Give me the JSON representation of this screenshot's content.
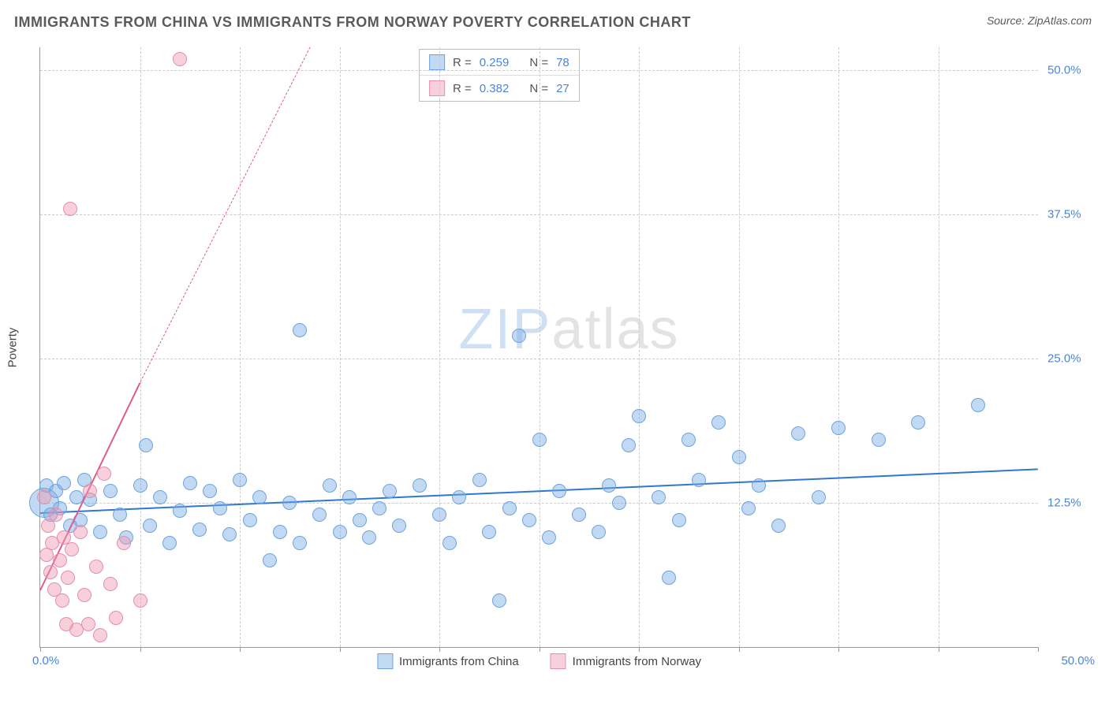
{
  "title": "IMMIGRANTS FROM CHINA VS IMMIGRANTS FROM NORWAY POVERTY CORRELATION CHART",
  "source": "Source: ZipAtlas.com",
  "ylabel": "Poverty",
  "watermark_zip": "ZIP",
  "watermark_atlas": "atlas",
  "chart": {
    "type": "scatter",
    "xlim": [
      0,
      50
    ],
    "ylim": [
      0,
      52
    ],
    "ytick_values": [
      12.5,
      25.0,
      37.5,
      50.0
    ],
    "ytick_labels": [
      "12.5%",
      "25.0%",
      "37.5%",
      "50.0%"
    ],
    "xtick_values": [
      0,
      5,
      10,
      15,
      20,
      25,
      30,
      35,
      40,
      45,
      50
    ],
    "x_axis_label_left": "0.0%",
    "x_axis_label_right": "50.0%",
    "grid_color": "#cccccc",
    "background": "#ffffff",
    "series": [
      {
        "name": "Immigrants from China",
        "color_fill": "rgba(120,170,230,0.45)",
        "color_stroke": "#6fa3dd",
        "trend_color": "#2f78d0",
        "trend_width": 2.5,
        "trend_dashed": false,
        "trend_start": {
          "x": 0,
          "y": 11.7
        },
        "trend_end": {
          "x": 50,
          "y": 15.5
        },
        "r_value": "0.259",
        "n_value": "78",
        "marker_radius": 8,
        "points": [
          {
            "x": 0.2,
            "y": 12.5,
            "r": 18
          },
          {
            "x": 0.3,
            "y": 14.0
          },
          {
            "x": 0.5,
            "y": 11.5
          },
          {
            "x": 0.8,
            "y": 13.5
          },
          {
            "x": 1.0,
            "y": 12.0
          },
          {
            "x": 1.2,
            "y": 14.2
          },
          {
            "x": 1.5,
            "y": 10.5
          },
          {
            "x": 1.8,
            "y": 13.0
          },
          {
            "x": 2.0,
            "y": 11.0
          },
          {
            "x": 2.2,
            "y": 14.5
          },
          {
            "x": 2.5,
            "y": 12.8
          },
          {
            "x": 3.0,
            "y": 10.0
          },
          {
            "x": 3.5,
            "y": 13.5
          },
          {
            "x": 4.0,
            "y": 11.5
          },
          {
            "x": 4.3,
            "y": 9.5
          },
          {
            "x": 5.0,
            "y": 14.0
          },
          {
            "x": 5.3,
            "y": 17.5
          },
          {
            "x": 5.5,
            "y": 10.5
          },
          {
            "x": 6.0,
            "y": 13.0
          },
          {
            "x": 6.5,
            "y": 9.0
          },
          {
            "x": 7.0,
            "y": 11.8
          },
          {
            "x": 7.5,
            "y": 14.2
          },
          {
            "x": 8.0,
            "y": 10.2
          },
          {
            "x": 8.5,
            "y": 13.5
          },
          {
            "x": 9.0,
            "y": 12.0
          },
          {
            "x": 9.5,
            "y": 9.8
          },
          {
            "x": 10.0,
            "y": 14.5
          },
          {
            "x": 10.5,
            "y": 11.0
          },
          {
            "x": 11.0,
            "y": 13.0
          },
          {
            "x": 11.5,
            "y": 7.5
          },
          {
            "x": 12.0,
            "y": 10.0
          },
          {
            "x": 12.5,
            "y": 12.5
          },
          {
            "x": 13.0,
            "y": 27.5
          },
          {
            "x": 13.0,
            "y": 9.0
          },
          {
            "x": 14.0,
            "y": 11.5
          },
          {
            "x": 14.5,
            "y": 14.0
          },
          {
            "x": 15.0,
            "y": 10.0
          },
          {
            "x": 15.5,
            "y": 13.0
          },
          {
            "x": 16.0,
            "y": 11.0
          },
          {
            "x": 16.5,
            "y": 9.5
          },
          {
            "x": 17.0,
            "y": 12.0
          },
          {
            "x": 17.5,
            "y": 13.5
          },
          {
            "x": 18.0,
            "y": 10.5
          },
          {
            "x": 19.0,
            "y": 14.0
          },
          {
            "x": 20.0,
            "y": 11.5
          },
          {
            "x": 20.5,
            "y": 9.0
          },
          {
            "x": 21.0,
            "y": 13.0
          },
          {
            "x": 22.0,
            "y": 14.5
          },
          {
            "x": 22.5,
            "y": 10.0
          },
          {
            "x": 23.0,
            "y": 4.0
          },
          {
            "x": 23.5,
            "y": 12.0
          },
          {
            "x": 24.0,
            "y": 27.0
          },
          {
            "x": 24.5,
            "y": 11.0
          },
          {
            "x": 25.0,
            "y": 18.0
          },
          {
            "x": 25.5,
            "y": 9.5
          },
          {
            "x": 26.0,
            "y": 13.5
          },
          {
            "x": 27.0,
            "y": 11.5
          },
          {
            "x": 28.0,
            "y": 10.0
          },
          {
            "x": 28.5,
            "y": 14.0
          },
          {
            "x": 29.0,
            "y": 12.5
          },
          {
            "x": 29.5,
            "y": 17.5
          },
          {
            "x": 30.0,
            "y": 20.0
          },
          {
            "x": 31.0,
            "y": 13.0
          },
          {
            "x": 31.5,
            "y": 6.0
          },
          {
            "x": 32.0,
            "y": 11.0
          },
          {
            "x": 32.5,
            "y": 18.0
          },
          {
            "x": 33.0,
            "y": 14.5
          },
          {
            "x": 34.0,
            "y": 19.5
          },
          {
            "x": 35.0,
            "y": 16.5
          },
          {
            "x": 35.5,
            "y": 12.0
          },
          {
            "x": 36.0,
            "y": 14.0
          },
          {
            "x": 37.0,
            "y": 10.5
          },
          {
            "x": 38.0,
            "y": 18.5
          },
          {
            "x": 39.0,
            "y": 13.0
          },
          {
            "x": 40.0,
            "y": 19.0
          },
          {
            "x": 42.0,
            "y": 18.0
          },
          {
            "x": 44.0,
            "y": 19.5
          },
          {
            "x": 47.0,
            "y": 21.0
          }
        ]
      },
      {
        "name": "Immigrants from Norway",
        "color_fill": "rgba(240,150,175,0.45)",
        "color_stroke": "#e48fac",
        "trend_color": "#e05b89",
        "trend_width": 2.5,
        "trend_dashed": false,
        "trend_start": {
          "x": 0,
          "y": 5.0
        },
        "trend_end": {
          "x": 5.0,
          "y": 23.0
        },
        "trend_ext_dashed": true,
        "trend_ext_start": {
          "x": 5.0,
          "y": 23.0
        },
        "trend_ext_end": {
          "x": 13.5,
          "y": 52.0
        },
        "r_value": "0.382",
        "n_value": "27",
        "marker_radius": 8,
        "points": [
          {
            "x": 0.2,
            "y": 13.0
          },
          {
            "x": 0.3,
            "y": 8.0
          },
          {
            "x": 0.4,
            "y": 10.5
          },
          {
            "x": 0.5,
            "y": 6.5
          },
          {
            "x": 0.6,
            "y": 9.0
          },
          {
            "x": 0.7,
            "y": 5.0
          },
          {
            "x": 0.8,
            "y": 11.5
          },
          {
            "x": 1.0,
            "y": 7.5
          },
          {
            "x": 1.1,
            "y": 4.0
          },
          {
            "x": 1.2,
            "y": 9.5
          },
          {
            "x": 1.3,
            "y": 2.0
          },
          {
            "x": 1.4,
            "y": 6.0
          },
          {
            "x": 1.5,
            "y": 38.0
          },
          {
            "x": 1.6,
            "y": 8.5
          },
          {
            "x": 1.8,
            "y": 1.5
          },
          {
            "x": 2.0,
            "y": 10.0
          },
          {
            "x": 2.2,
            "y": 4.5
          },
          {
            "x": 2.4,
            "y": 2.0
          },
          {
            "x": 2.5,
            "y": 13.5
          },
          {
            "x": 2.8,
            "y": 7.0
          },
          {
            "x": 3.0,
            "y": 1.0
          },
          {
            "x": 3.2,
            "y": 15.0
          },
          {
            "x": 3.5,
            "y": 5.5
          },
          {
            "x": 3.8,
            "y": 2.5
          },
          {
            "x": 4.2,
            "y": 9.0
          },
          {
            "x": 5.0,
            "y": 4.0
          },
          {
            "x": 7.0,
            "y": 51.0
          }
        ]
      }
    ]
  },
  "legend_top": [
    {
      "swatch_fill": "rgba(120,170,230,0.45)",
      "swatch_stroke": "#6fa3dd",
      "r": "0.259",
      "n": "78"
    },
    {
      "swatch_fill": "rgba(240,150,175,0.45)",
      "swatch_stroke": "#e48fac",
      "r": "0.382",
      "n": "27"
    }
  ],
  "legend_bottom": [
    {
      "swatch_fill": "rgba(120,170,230,0.45)",
      "swatch_stroke": "#6fa3dd",
      "label": "Immigrants from China"
    },
    {
      "swatch_fill": "rgba(240,150,175,0.45)",
      "swatch_stroke": "#e48fac",
      "label": "Immigrants from Norway"
    }
  ],
  "legend_labels": {
    "r_prefix": "R =",
    "n_prefix": "N ="
  }
}
